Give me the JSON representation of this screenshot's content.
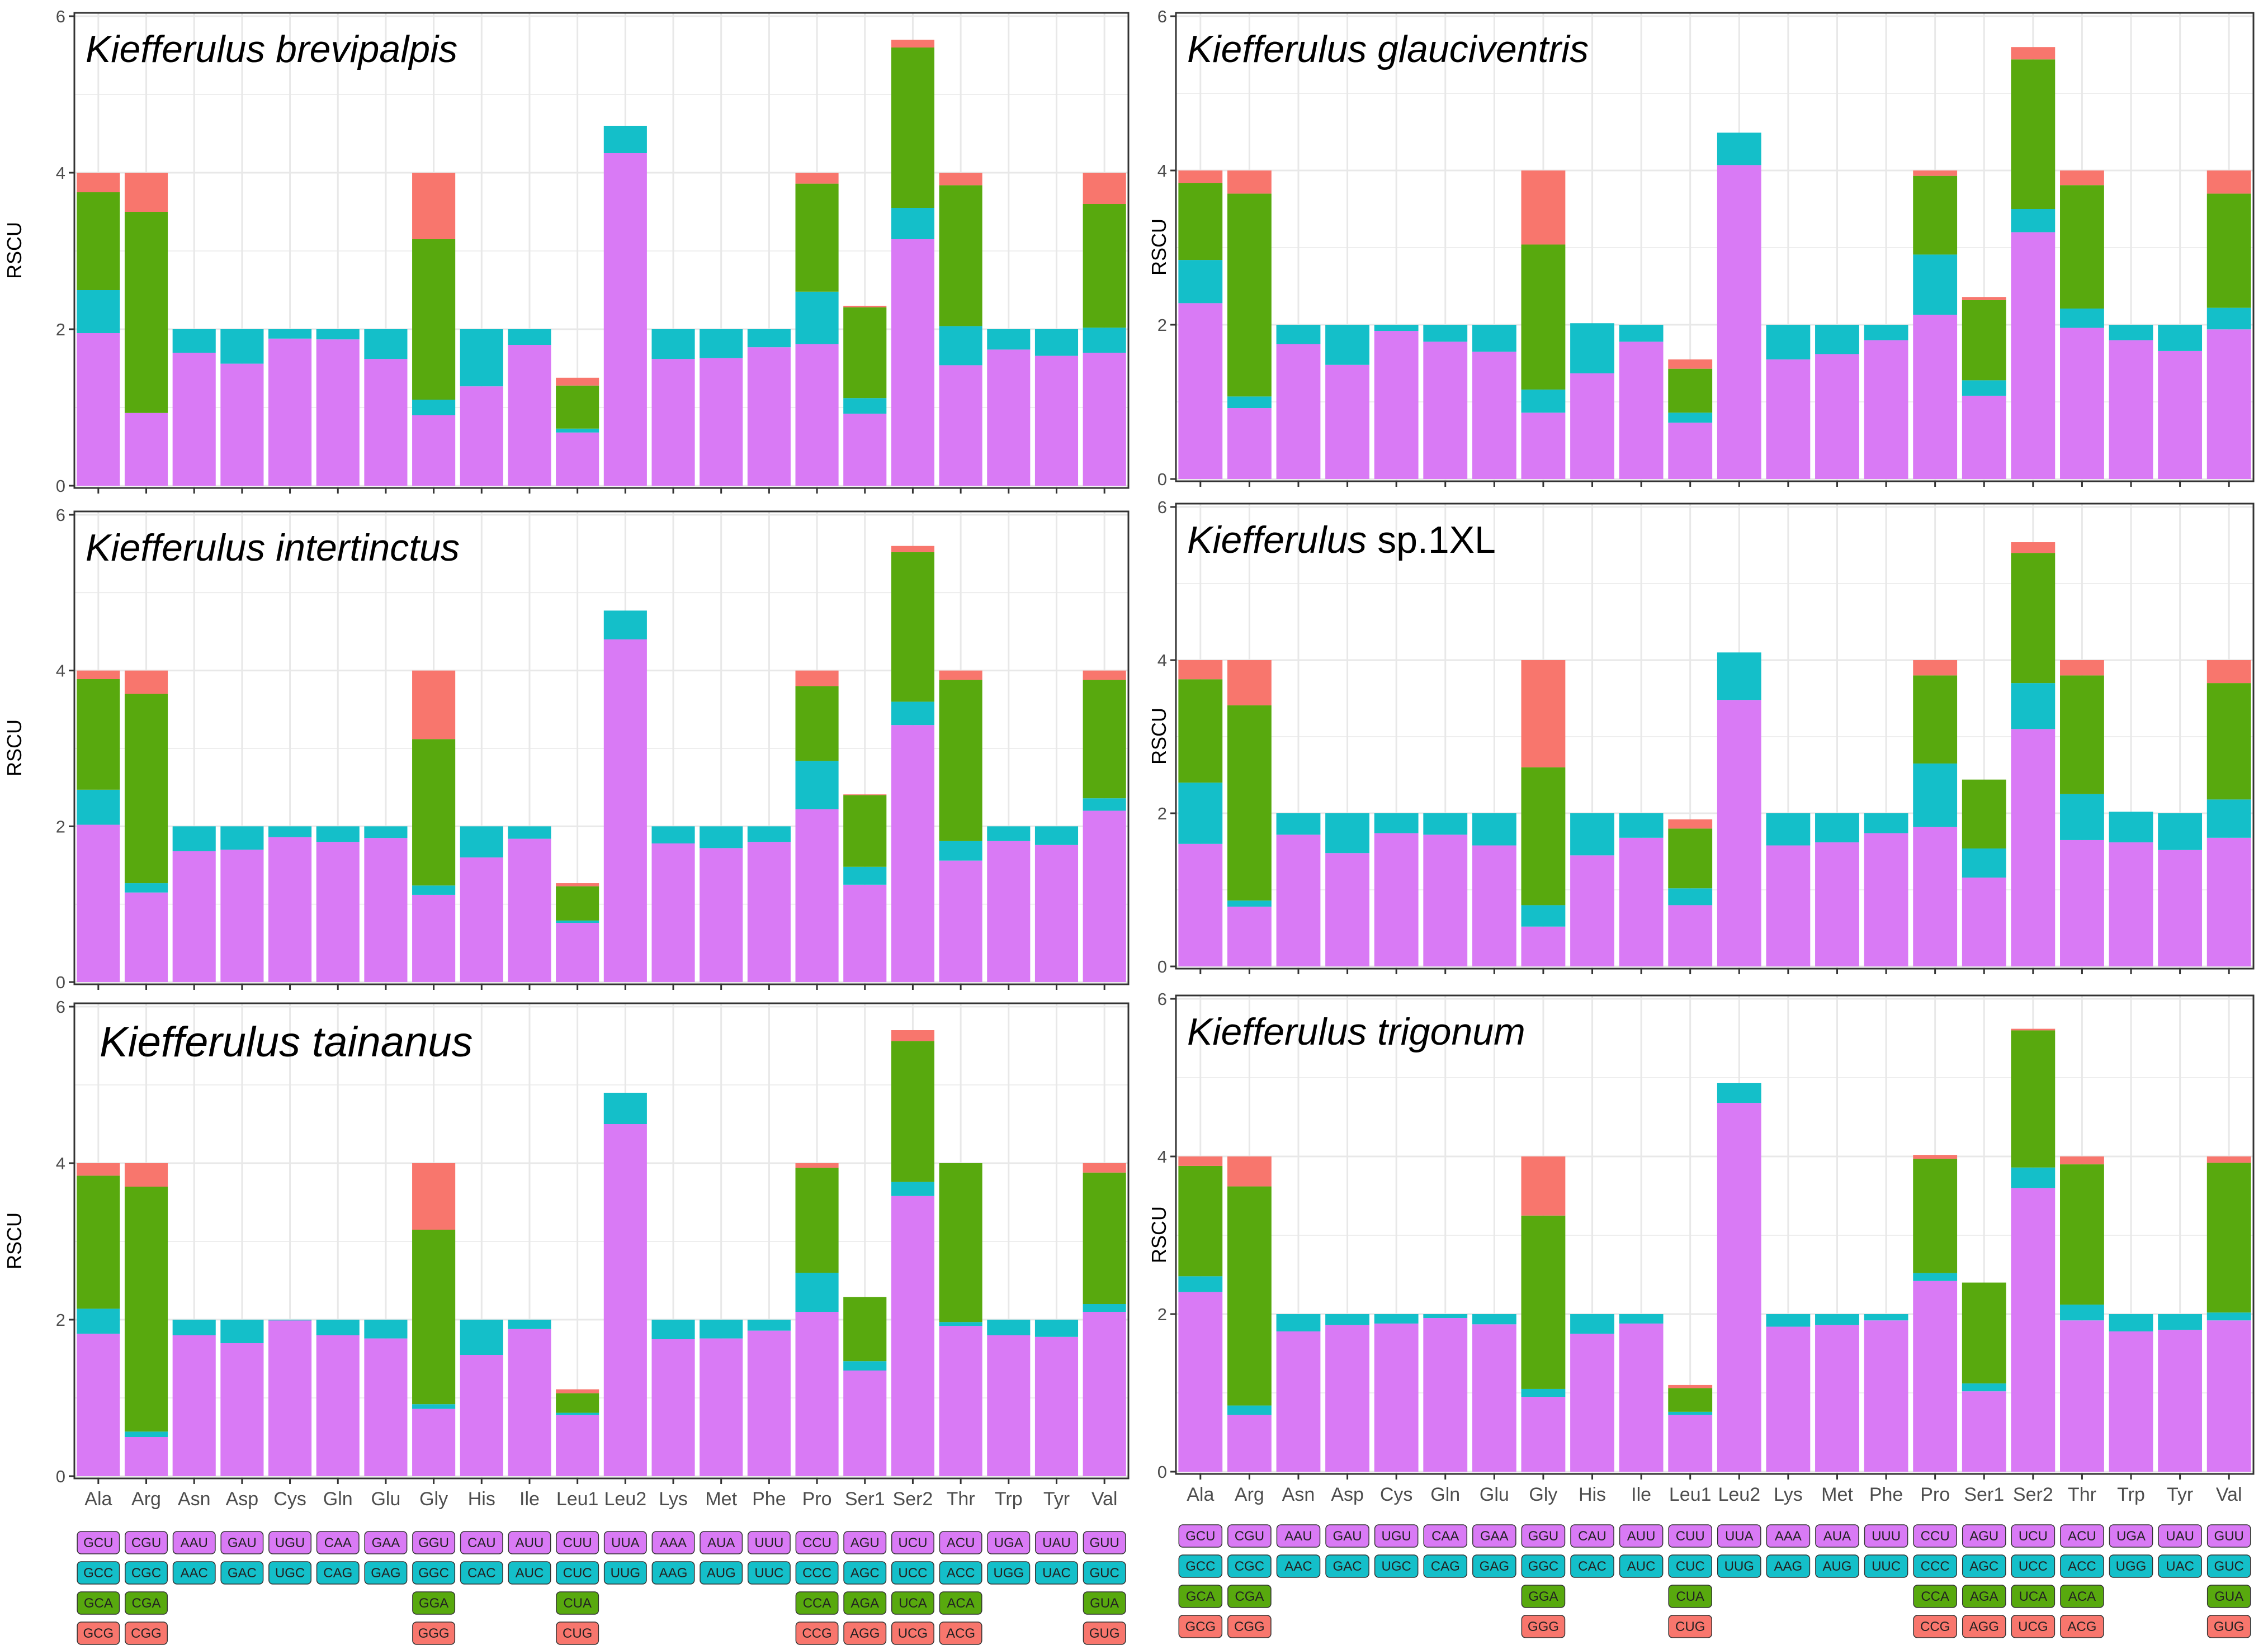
{
  "amino_acids": [
    "Ala",
    "Arg",
    "Asn",
    "Asp",
    "Cys",
    "Gln",
    "Glu",
    "Gly",
    "His",
    "Ile",
    "Leu1",
    "Leu2",
    "Lys",
    "Met",
    "Phe",
    "Pro",
    "Ser1",
    "Ser2",
    "Thr",
    "Trp",
    "Tyr",
    "Val"
  ],
  "codon_rows": [
    [
      "GCU",
      "CGU",
      "AAU",
      "GAU",
      "UGU",
      "CAA",
      "GAA",
      "GGU",
      "CAU",
      "AUU",
      "CUU",
      "UUA",
      "AAA",
      "AUA",
      "UUU",
      "CCU",
      "AGU",
      "UCU",
      "ACU",
      "UGA",
      "UAU",
      "GUU"
    ],
    [
      "GCC",
      "CGC",
      "AAC",
      "GAC",
      "UGC",
      "CAG",
      "GAG",
      "GGC",
      "CAC",
      "AUC",
      "CUC",
      "UUG",
      "AAG",
      "AUG",
      "UUC",
      "CCC",
      "AGC",
      "UCC",
      "ACC",
      "UGG",
      "UAC",
      "GUC"
    ],
    [
      "GCA",
      "CGA",
      "",
      "",
      "",
      "",
      "",
      "GGA",
      "",
      "",
      "CUA",
      "",
      "",
      "",
      "",
      "CCA",
      "AGA",
      "UCA",
      "ACA",
      "",
      "",
      "GUA"
    ],
    [
      "GCG",
      "CGG",
      "",
      "",
      "",
      "",
      "",
      "GGG",
      "",
      "",
      "CUG",
      "",
      "",
      "",
      "",
      "CCG",
      "AGG",
      "UCG",
      "ACG",
      "",
      "",
      "GUG"
    ]
  ],
  "colors": {
    "codon1": "#D97AF5",
    "codon2": "#14BFC9",
    "codon3": "#58A90E",
    "codon4": "#F8766D",
    "grid": "#E8E8E8",
    "axis_text": "#4D4D4D"
  },
  "chart_data": [
    {
      "type": "bar",
      "stacked": true,
      "title_italic": "Kiefferulus brevipalpis",
      "title_plain": "",
      "ylabel": "RSCU",
      "ylim": [
        0,
        6
      ],
      "yticks": [
        "0",
        "2",
        "4",
        "6"
      ],
      "show_x_labels": false,
      "categories": [
        "Ala",
        "Arg",
        "Asn",
        "Asp",
        "Cys",
        "Gln",
        "Glu",
        "Gly",
        "His",
        "Ile",
        "Leu1",
        "Leu2",
        "Lys",
        "Met",
        "Phe",
        "Pro",
        "Ser1",
        "Ser2",
        "Thr",
        "Trp",
        "Tyr",
        "Val"
      ],
      "series": [
        {
          "values": [
            1.95,
            0.93,
            1.7,
            1.56,
            1.88,
            1.87,
            1.62,
            0.9,
            1.27,
            1.8,
            0.68,
            4.25,
            1.62,
            1.63,
            1.77,
            1.81,
            0.92,
            3.15,
            1.54,
            1.74,
            1.66,
            1.7
          ]
        },
        {
          "values": [
            0.55,
            0.0,
            0.3,
            0.44,
            0.12,
            0.13,
            0.38,
            0.2,
            0.73,
            0.2,
            0.05,
            0.35,
            0.38,
            0.37,
            0.23,
            0.67,
            0.2,
            0.4,
            0.5,
            0.26,
            0.34,
            0.32
          ]
        },
        {
          "values": [
            1.25,
            2.57,
            0,
            0,
            0,
            0,
            0,
            2.05,
            0,
            0,
            0.55,
            0,
            0,
            0,
            0,
            1.38,
            1.16,
            2.05,
            1.8,
            0,
            0,
            1.58
          ]
        },
        {
          "values": [
            0.25,
            0.5,
            0,
            0,
            0,
            0,
            0,
            0.85,
            0,
            0,
            0.1,
            0,
            0,
            0,
            0,
            0.14,
            0.02,
            0.1,
            0.16,
            0,
            0,
            0.4
          ]
        }
      ]
    },
    {
      "type": "bar",
      "stacked": true,
      "title_italic": "Kiefferulus glauciventris",
      "title_plain": "",
      "ylabel": "RSCU",
      "ylim": [
        0,
        6
      ],
      "yticks": [
        "0",
        "2",
        "4",
        "6"
      ],
      "show_x_labels": false,
      "categories": [
        "Ala",
        "Arg",
        "Asn",
        "Asp",
        "Cys",
        "Gln",
        "Glu",
        "Gly",
        "His",
        "Ile",
        "Leu1",
        "Leu2",
        "Lys",
        "Met",
        "Phe",
        "Pro",
        "Ser1",
        "Ser2",
        "Thr",
        "Trp",
        "Tyr",
        "Val"
      ],
      "series": [
        {
          "values": [
            2.28,
            0.92,
            1.75,
            1.48,
            1.92,
            1.78,
            1.65,
            0.86,
            1.37,
            1.78,
            0.73,
            4.07,
            1.55,
            1.62,
            1.8,
            2.13,
            1.08,
            3.2,
            1.96,
            1.8,
            1.66,
            1.94
          ]
        },
        {
          "values": [
            0.56,
            0.15,
            0.25,
            0.52,
            0.08,
            0.22,
            0.35,
            0.3,
            0.65,
            0.22,
            0.13,
            0.42,
            0.45,
            0.38,
            0.2,
            0.78,
            0.2,
            0.3,
            0.25,
            0.2,
            0.34,
            0.28
          ]
        },
        {
          "values": [
            1.0,
            2.63,
            0,
            0,
            0,
            0,
            0,
            1.88,
            0,
            0,
            0.57,
            0,
            0,
            0,
            0,
            1.02,
            1.04,
            1.94,
            1.6,
            0,
            0,
            1.48
          ]
        },
        {
          "values": [
            0.16,
            0.3,
            0,
            0,
            0,
            0,
            0,
            0.96,
            0,
            0,
            0.12,
            0,
            0,
            0,
            0,
            0.07,
            0.04,
            0.16,
            0.19,
            0,
            0,
            0.3
          ]
        }
      ]
    },
    {
      "type": "bar",
      "stacked": true,
      "title_italic": "Kiefferulus intertinctus",
      "title_plain": "",
      "ylabel": "RSCU",
      "ylim": [
        0,
        6
      ],
      "yticks": [
        "0",
        "2",
        "4",
        "6"
      ],
      "show_x_labels": false,
      "categories": [
        "Ala",
        "Arg",
        "Asn",
        "Asp",
        "Cys",
        "Gln",
        "Glu",
        "Gly",
        "His",
        "Ile",
        "Leu1",
        "Leu2",
        "Lys",
        "Met",
        "Phe",
        "Pro",
        "Ser1",
        "Ser2",
        "Thr",
        "Trp",
        "Tyr",
        "Val"
      ],
      "series": [
        {
          "values": [
            2.02,
            1.15,
            1.68,
            1.7,
            1.86,
            1.8,
            1.85,
            1.12,
            1.6,
            1.84,
            0.76,
            4.4,
            1.78,
            1.72,
            1.8,
            2.22,
            1.25,
            3.3,
            1.56,
            1.81,
            1.76,
            2.2
          ]
        },
        {
          "values": [
            0.45,
            0.12,
            0.32,
            0.3,
            0.14,
            0.2,
            0.15,
            0.12,
            0.4,
            0.16,
            0.03,
            0.37,
            0.22,
            0.28,
            0.2,
            0.62,
            0.23,
            0.3,
            0.25,
            0.19,
            0.24,
            0.16
          ]
        },
        {
          "values": [
            1.42,
            2.43,
            0,
            0,
            0,
            0,
            0,
            1.88,
            0,
            0,
            0.44,
            0,
            0,
            0,
            0,
            0.96,
            0.92,
            1.92,
            2.07,
            0,
            0,
            1.52
          ]
        },
        {
          "values": [
            0.11,
            0.3,
            0,
            0,
            0,
            0,
            0,
            0.88,
            0,
            0,
            0.04,
            0,
            0,
            0,
            0,
            0.2,
            0.01,
            0.08,
            0.12,
            0,
            0,
            0.12
          ]
        }
      ]
    },
    {
      "type": "bar",
      "stacked": true,
      "title_italic": "Kiefferulus",
      "title_plain": " sp.1XL",
      "ylabel": "RSCU",
      "ylim": [
        0,
        6
      ],
      "yticks": [
        "0",
        "2",
        "4",
        "6"
      ],
      "show_x_labels": false,
      "categories": [
        "Ala",
        "Arg",
        "Asn",
        "Asp",
        "Cys",
        "Gln",
        "Glu",
        "Gly",
        "His",
        "Ile",
        "Leu1",
        "Leu2",
        "Lys",
        "Met",
        "Phe",
        "Pro",
        "Ser1",
        "Ser2",
        "Thr",
        "Trp",
        "Tyr",
        "Val"
      ],
      "series": [
        {
          "values": [
            1.6,
            0.78,
            1.72,
            1.48,
            1.74,
            1.72,
            1.58,
            0.52,
            1.45,
            1.68,
            0.8,
            3.48,
            1.58,
            1.62,
            1.74,
            1.82,
            1.16,
            3.1,
            1.65,
            1.62,
            1.52,
            1.68
          ]
        },
        {
          "values": [
            0.8,
            0.08,
            0.28,
            0.52,
            0.26,
            0.28,
            0.42,
            0.28,
            0.55,
            0.32,
            0.22,
            0.62,
            0.42,
            0.38,
            0.26,
            0.83,
            0.38,
            0.6,
            0.6,
            0.4,
            0.48,
            0.5
          ]
        },
        {
          "values": [
            1.35,
            2.55,
            0,
            0,
            0,
            0,
            0,
            1.8,
            0,
            0,
            0.78,
            0,
            0,
            0,
            0,
            1.15,
            0.9,
            1.7,
            1.55,
            0,
            0,
            1.52
          ]
        },
        {
          "values": [
            0.25,
            0.59,
            0,
            0,
            0,
            0,
            0,
            1.4,
            0,
            0,
            0.12,
            0,
            0,
            0,
            0,
            0.2,
            0,
            0.14,
            0.2,
            0,
            0,
            0.3
          ]
        }
      ]
    },
    {
      "type": "bar",
      "stacked": true,
      "title_italic": "Kiefferulus tainanus",
      "title_plain": "",
      "ylabel": "RSCU",
      "ylim": [
        0,
        6
      ],
      "yticks": [
        "0",
        "2",
        "4",
        "6"
      ],
      "show_x_labels": true,
      "categories": [
        "Ala",
        "Arg",
        "Asn",
        "Asp",
        "Cys",
        "Gln",
        "Glu",
        "Gly",
        "His",
        "Ile",
        "Leu1",
        "Leu2",
        "Lys",
        "Met",
        "Phe",
        "Pro",
        "Ser1",
        "Ser2",
        "Thr",
        "Trp",
        "Tyr",
        "Val"
      ],
      "series": [
        {
          "values": [
            1.82,
            0.5,
            1.8,
            1.7,
            1.99,
            1.8,
            1.76,
            0.86,
            1.55,
            1.88,
            0.78,
            4.5,
            1.75,
            1.76,
            1.86,
            2.1,
            1.35,
            3.58,
            1.92,
            1.8,
            1.78,
            2.1
          ]
        },
        {
          "values": [
            0.32,
            0.07,
            0.2,
            0.3,
            0.01,
            0.2,
            0.24,
            0.06,
            0.45,
            0.12,
            0.03,
            0.4,
            0.25,
            0.24,
            0.14,
            0.5,
            0.12,
            0.18,
            0.05,
            0.2,
            0.22,
            0.1
          ]
        },
        {
          "values": [
            1.7,
            3.13,
            0,
            0,
            0,
            0,
            0,
            2.23,
            0,
            0,
            0.25,
            0,
            0,
            0,
            0,
            1.34,
            0.82,
            1.8,
            2.03,
            0,
            0,
            1.68
          ]
        },
        {
          "values": [
            0.16,
            0.3,
            0,
            0,
            0,
            0,
            0,
            0.85,
            0,
            0,
            0.05,
            0,
            0,
            0,
            0,
            0.06,
            0,
            0.14,
            0,
            0,
            0,
            0.12
          ]
        }
      ]
    },
    {
      "type": "bar",
      "stacked": true,
      "title_italic": "Kiefferulus trigonum",
      "title_plain": "",
      "ylabel": "RSCU",
      "ylim": [
        0,
        6
      ],
      "yticks": [
        "0",
        "2",
        "4",
        "6"
      ],
      "show_x_labels": true,
      "categories": [
        "Ala",
        "Arg",
        "Asn",
        "Asp",
        "Cys",
        "Gln",
        "Glu",
        "Gly",
        "His",
        "Ile",
        "Leu1",
        "Leu2",
        "Lys",
        "Met",
        "Phe",
        "Pro",
        "Ser1",
        "Ser2",
        "Thr",
        "Trp",
        "Tyr",
        "Val"
      ],
      "series": [
        {
          "values": [
            2.28,
            0.72,
            1.78,
            1.86,
            1.88,
            1.95,
            1.87,
            0.95,
            1.75,
            1.88,
            0.72,
            4.68,
            1.84,
            1.86,
            1.92,
            2.42,
            1.02,
            3.6,
            1.92,
            1.78,
            1.8,
            1.92
          ]
        },
        {
          "values": [
            0.2,
            0.12,
            0.22,
            0.14,
            0.12,
            0.05,
            0.13,
            0.1,
            0.25,
            0.12,
            0.04,
            0.25,
            0.16,
            0.14,
            0.08,
            0.1,
            0.1,
            0.26,
            0.2,
            0.22,
            0.2,
            0.1
          ]
        },
        {
          "values": [
            1.4,
            2.78,
            0,
            0,
            0,
            0,
            0,
            2.2,
            0,
            0,
            0.3,
            0,
            0,
            0,
            0,
            1.45,
            1.28,
            1.74,
            1.78,
            0,
            0,
            1.9
          ]
        },
        {
          "values": [
            0.12,
            0.38,
            0,
            0,
            0,
            0,
            0,
            0.75,
            0,
            0,
            0.04,
            0,
            0,
            0,
            0,
            0.05,
            0,
            0.02,
            0.1,
            0,
            0,
            0.08
          ]
        }
      ]
    }
  ]
}
